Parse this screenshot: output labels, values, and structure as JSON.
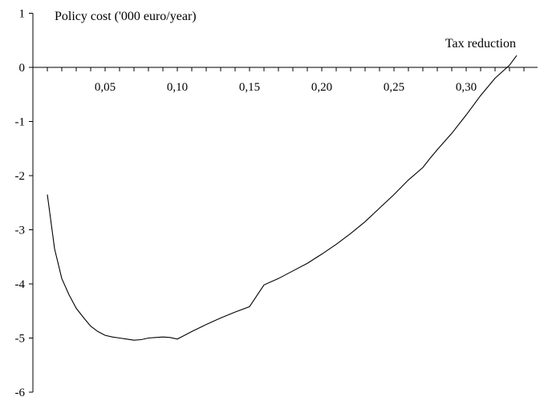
{
  "chart_data": {
    "type": "line",
    "ylabel": "Policy cost ('000 euro/year)",
    "xlabel": "Tax reduction",
    "xlim": [
      0,
      0.34
    ],
    "ylim": [
      -6,
      1
    ],
    "x_ticks": [
      0.05,
      0.1,
      0.15,
      0.2,
      0.25,
      0.3
    ],
    "x_tick_labels": [
      "0,05",
      "0,10",
      "0,15",
      "0,20",
      "0,25",
      "0,30"
    ],
    "y_ticks": [
      1,
      0,
      -1,
      -2,
      -3,
      -4,
      -5,
      -6
    ],
    "y_tick_labels": [
      "1",
      "0",
      "-1",
      "-2",
      "-3",
      "-4",
      "-5",
      "-6"
    ],
    "x_minor_step": 0.01,
    "legend": "none",
    "grid": false,
    "series": [
      {
        "x": [
          0.01,
          0.015,
          0.02,
          0.025,
          0.03,
          0.035,
          0.04,
          0.045,
          0.05,
          0.055,
          0.06,
          0.065,
          0.07,
          0.075,
          0.08,
          0.085,
          0.09,
          0.095,
          0.1,
          0.105,
          0.11,
          0.12,
          0.13,
          0.14,
          0.15,
          0.155,
          0.16,
          0.17,
          0.18,
          0.19,
          0.2,
          0.21,
          0.22,
          0.23,
          0.24,
          0.25,
          0.26,
          0.27,
          0.275,
          0.28,
          0.29,
          0.3,
          0.31,
          0.32,
          0.33,
          0.335
        ],
        "y": [
          -2.35,
          -3.35,
          -3.9,
          -4.2,
          -4.45,
          -4.62,
          -4.78,
          -4.88,
          -4.95,
          -4.98,
          -5.0,
          -5.02,
          -5.04,
          -5.03,
          -5.0,
          -4.99,
          -4.98,
          -4.99,
          -5.02,
          -4.95,
          -4.88,
          -4.75,
          -4.63,
          -4.52,
          -4.42,
          -4.22,
          -4.02,
          -3.9,
          -3.76,
          -3.62,
          -3.45,
          -3.27,
          -3.07,
          -2.85,
          -2.6,
          -2.35,
          -2.08,
          -1.85,
          -1.68,
          -1.52,
          -1.22,
          -0.88,
          -0.52,
          -0.2,
          0.04,
          0.22
        ]
      }
    ]
  }
}
